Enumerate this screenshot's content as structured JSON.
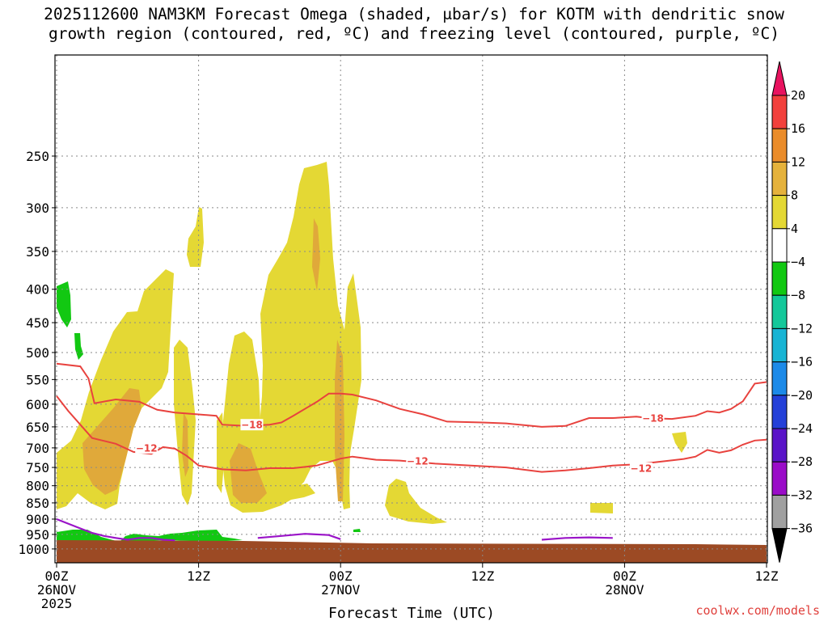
{
  "title": {
    "line1": "2025112600 NAM3KM Forecast Omega (shaded, μbar/s) for KOTM with dendritic snow",
    "line2": "growth region (contoured, red, ºC) and freezing level (contoured, purple, ºC)"
  },
  "credit": "coolwx.com/models",
  "colors": {
    "dgz_contour": "#e8423e",
    "freezing_contour": "#9a14c8",
    "ground": "#9c4a24",
    "shade_4_8": "#e4d834",
    "shade_8_12": "#e0a93a",
    "shade_neg4_neg8": "#12c812"
  },
  "chart_data": {
    "type": "time-height cross section",
    "xlabel": "Forecast Time (UTC)",
    "ylabel": "",
    "x_range_hours": [
      0,
      60
    ],
    "y_range_hpa": [
      1050,
      175
    ],
    "y_scale": "log-pressure",
    "grid": "dotted",
    "x_ticks": [
      {
        "hour": 0,
        "lines": [
          "00Z",
          "26NOV",
          "2025"
        ]
      },
      {
        "hour": 12,
        "lines": [
          "12Z"
        ]
      },
      {
        "hour": 24,
        "lines": [
          "00Z",
          "27NOV"
        ]
      },
      {
        "hour": 36,
        "lines": [
          "12Z"
        ]
      },
      {
        "hour": 48,
        "lines": [
          "00Z",
          "28NOV"
        ]
      },
      {
        "hour": 60,
        "lines": [
          "12Z"
        ]
      }
    ],
    "y_ticks": [
      250,
      300,
      350,
      400,
      450,
      500,
      550,
      600,
      650,
      700,
      750,
      800,
      850,
      900,
      950,
      1000
    ],
    "colorbar": {
      "levels": [
        "20",
        "16",
        "12",
        "8",
        "4",
        "−4",
        "−8",
        "−12",
        "−16",
        "−20",
        "−24",
        "−28",
        "−32",
        "−36"
      ],
      "colors": [
        "#e8135f",
        "#f2403c",
        "#ea8c2a",
        "#e5b23c",
        "#e4d834",
        "#ffffff",
        "#12c812",
        "#14c89a",
        "#18b4d4",
        "#1c8ae8",
        "#2440d8",
        "#5a14c8",
        "#9a0cc8",
        "#a0a0a0",
        "#000000"
      ]
    },
    "series": [
      {
        "name": "",
        "contour": "-18",
        "labels": [
          {
            "hour": 16.5,
            "p": 645
          },
          {
            "hour": 50.4,
            "p": 630
          }
        ],
        "points": [
          [
            0,
            520
          ],
          [
            2,
            525
          ],
          [
            2.7,
            548
          ],
          [
            3.2,
            598
          ],
          [
            5,
            590
          ],
          [
            7,
            595
          ],
          [
            8.5,
            612
          ],
          [
            10,
            618
          ],
          [
            12,
            622
          ],
          [
            13.5,
            625
          ],
          [
            14,
            645
          ],
          [
            16,
            648
          ],
          [
            18,
            645
          ],
          [
            19,
            640
          ],
          [
            20,
            625
          ],
          [
            22,
            595
          ],
          [
            23,
            578
          ],
          [
            24,
            578
          ],
          [
            25,
            580
          ],
          [
            27,
            592
          ],
          [
            29,
            610
          ],
          [
            31,
            622
          ],
          [
            33,
            638
          ],
          [
            36,
            640
          ],
          [
            38,
            642
          ],
          [
            41,
            650
          ],
          [
            43,
            648
          ],
          [
            45,
            630
          ],
          [
            47,
            630
          ],
          [
            49,
            627
          ],
          [
            50,
            630
          ],
          [
            52,
            632
          ],
          [
            54,
            625
          ],
          [
            55,
            615
          ],
          [
            56,
            618
          ],
          [
            57,
            610
          ],
          [
            58,
            594
          ],
          [
            59,
            558
          ],
          [
            60,
            555
          ]
        ]
      },
      {
        "name": "",
        "contour": "-12",
        "labels": [
          {
            "hour": 7.6,
            "p": 700
          },
          {
            "hour": 30.5,
            "p": 733
          },
          {
            "hour": 49.4,
            "p": 752
          }
        ],
        "points": [
          [
            0,
            583
          ],
          [
            1,
            615
          ],
          [
            3,
            676
          ],
          [
            5,
            690
          ],
          [
            6.5,
            710
          ],
          [
            8,
            715
          ],
          [
            9,
            698
          ],
          [
            10,
            702
          ],
          [
            11,
            720
          ],
          [
            12,
            745
          ],
          [
            14,
            755
          ],
          [
            16,
            758
          ],
          [
            18,
            752
          ],
          [
            20,
            752
          ],
          [
            22,
            745
          ],
          [
            24,
            727
          ],
          [
            25,
            722
          ],
          [
            27,
            730
          ],
          [
            29,
            732
          ],
          [
            32,
            740
          ],
          [
            35,
            745
          ],
          [
            38,
            750
          ],
          [
            41,
            762
          ],
          [
            43,
            758
          ],
          [
            45,
            752
          ],
          [
            47,
            745
          ],
          [
            49,
            742
          ],
          [
            51,
            735
          ],
          [
            53,
            728
          ],
          [
            54,
            722
          ],
          [
            55,
            705
          ],
          [
            56,
            712
          ],
          [
            57,
            706
          ],
          [
            58,
            692
          ],
          [
            59,
            682
          ],
          [
            60,
            680
          ]
        ]
      },
      {
        "name": "",
        "contour": "0",
        "points_segments": [
          [
            [
              0,
              900
            ],
            [
              2,
              930
            ],
            [
              3,
              945
            ],
            [
              4,
              955
            ],
            [
              5,
              962
            ],
            [
              6,
              968
            ],
            [
              7,
              962
            ],
            [
              8,
              962
            ],
            [
              9,
              968
            ],
            [
              10,
              970
            ]
          ],
          [
            [
              17,
              962
            ],
            [
              19,
              955
            ],
            [
              21,
              948
            ],
            [
              23,
              952
            ],
            [
              24,
              966
            ]
          ],
          [
            [
              41,
              968
            ],
            [
              43,
              962
            ],
            [
              45,
              960
            ],
            [
              47,
              962
            ]
          ]
        ]
      }
    ]
  }
}
